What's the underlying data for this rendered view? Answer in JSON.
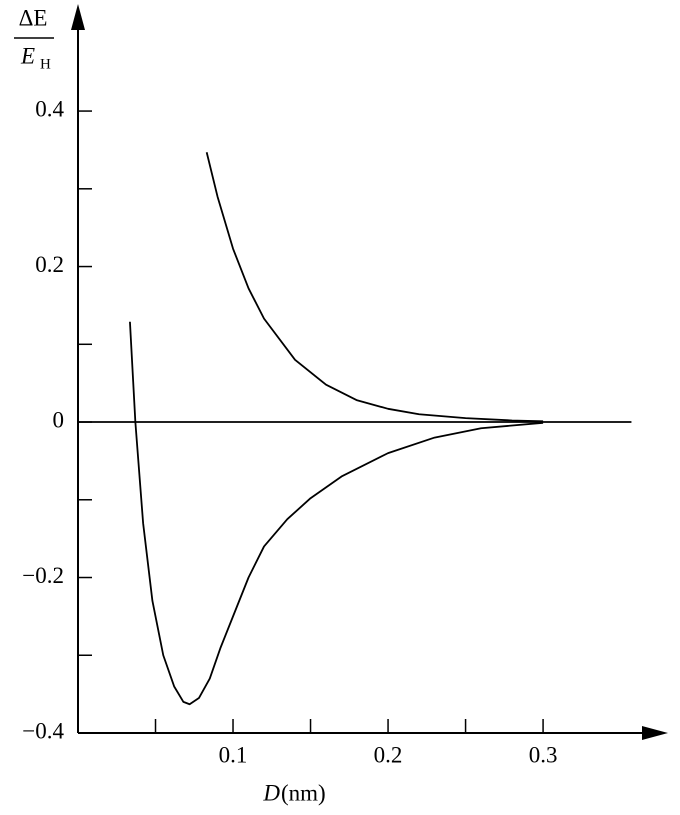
{
  "chart_data": {
    "type": "line",
    "ylabel_numerator": "ΔE",
    "ylabel_denominator": "E",
    "ylabel_denominator_sub": "H",
    "xlabel_var": "D",
    "xlabel_unit": "(nm)",
    "xlim": [
      0,
      0.378
    ],
    "ylim": [
      -0.4,
      0.53
    ],
    "xticks": [
      0.1,
      0.2,
      0.3
    ],
    "xminorticks": [
      0.05,
      0.15,
      0.25
    ],
    "yticks": [
      {
        "value": -0.4,
        "label": "−0.4"
      },
      {
        "value": -0.2,
        "label": "−0.2"
      },
      0,
      0.2,
      0.4
    ],
    "yminorticks": [
      -0.3,
      -0.1,
      0.1,
      0.3
    ],
    "series": [
      {
        "color": "#000000",
        "x": [
          0.083,
          0.09,
          0.1,
          0.11,
          0.12,
          0.14,
          0.16,
          0.18,
          0.2,
          0.22,
          0.25,
          0.28,
          0.3
        ],
        "values": [
          0.347,
          0.29,
          0.223,
          0.172,
          0.133,
          0.08,
          0.048,
          0.028,
          0.017,
          0.01,
          0.005,
          0.002,
          0.001
        ]
      },
      {
        "color": "#000000",
        "x": [
          0.0335,
          0.037,
          0.042,
          0.048,
          0.055,
          0.062,
          0.068,
          0.072,
          0.078,
          0.085,
          0.092,
          0.1,
          0.11,
          0.12,
          0.135,
          0.15,
          0.17,
          0.2,
          0.23,
          0.26,
          0.3
        ],
        "values": [
          0.129,
          0.0,
          -0.13,
          -0.23,
          -0.3,
          -0.34,
          -0.36,
          -0.363,
          -0.355,
          -0.33,
          -0.29,
          -0.25,
          -0.2,
          -0.16,
          -0.125,
          -0.098,
          -0.07,
          -0.04,
          -0.02,
          -0.008,
          -0.001
        ]
      },
      {
        "color": "#000000",
        "x": [
          0,
          0.357
        ],
        "values": [
          0,
          0
        ]
      }
    ]
  }
}
